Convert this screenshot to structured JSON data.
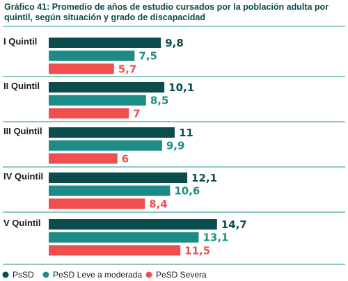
{
  "chart_data": {
    "type": "bar",
    "orientation": "horizontal",
    "title": "Gráfico 41: Promedio de años de estudio cursados por la población adulta por quintil, según situación y grado de discapacidad",
    "categories": [
      "I Quintil",
      "II Quintil",
      "III Quintil",
      "IV Quintil",
      "V Quintil"
    ],
    "series": [
      {
        "name": "PsSD",
        "color": "#0b4d4d",
        "values": [
          9.8,
          10.1,
          11,
          12.1,
          14.7
        ],
        "labels": [
          "9,8",
          "10,1",
          "11",
          "12,1",
          "14,7"
        ]
      },
      {
        "name": "PeSD Leve a moderada",
        "color": "#1e8c86",
        "values": [
          7.5,
          8.5,
          9.9,
          10.6,
          13.1
        ],
        "labels": [
          "7,5",
          "8,5",
          "9,9",
          "10,6",
          "13,1"
        ]
      },
      {
        "name": "PeSD Severa",
        "color": "#ef4f4f",
        "values": [
          5.7,
          7,
          6,
          8.4,
          11.5
        ],
        "labels": [
          "5,7",
          "7",
          "6",
          "8,4",
          "11,5"
        ]
      }
    ],
    "xlim": [
      0,
      15.8
    ],
    "grid": false,
    "legend_position": "bottom-left"
  }
}
